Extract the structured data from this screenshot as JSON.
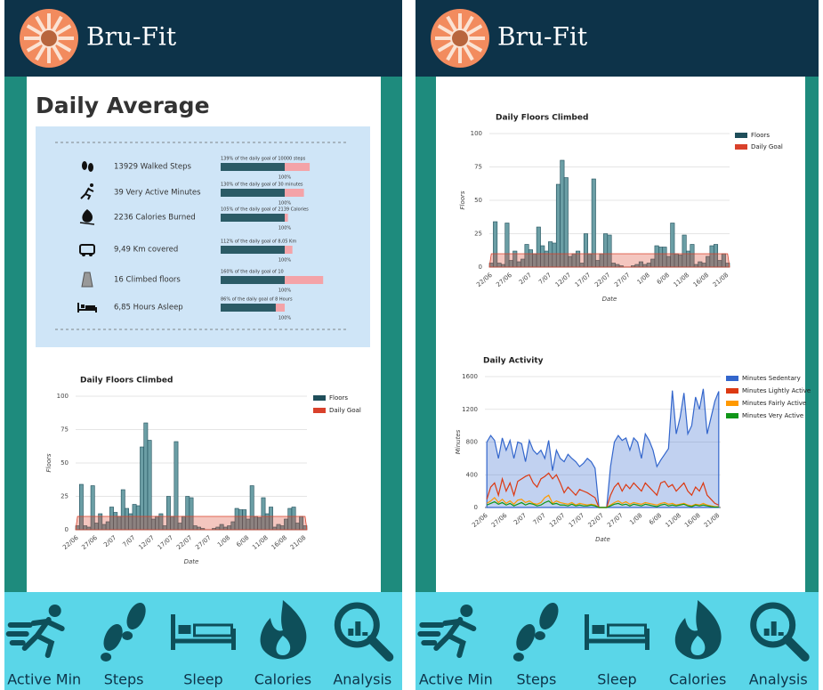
{
  "app_name": "Bru-Fit",
  "nav": [
    "Active Min",
    "Steps",
    "Sleep",
    "Calories",
    "Analysis"
  ],
  "daily_average": {
    "title": "Daily Average",
    "goal_mark_label": "100%",
    "items": [
      {
        "text": "13929 Walked Steps",
        "caption": "139% of the daily goal of 10000 steps",
        "percent": 139
      },
      {
        "text": "39 Very Active Minutes",
        "caption": "130% of the daily goal of 30 minutes",
        "percent": 130
      },
      {
        "text": "2236 Calories Burned",
        "caption": "105% of the daily goal of 2139 Calories",
        "percent": 105
      },
      {
        "text": "9,49 Km covered",
        "caption": "112% of the daily goal of 8,05 Km",
        "percent": 112
      },
      {
        "text": "16 Climbed floors",
        "caption": "160% of the daily goal of 10",
        "percent": 160
      },
      {
        "text": "6,85 Hours Asleep",
        "caption": "86% of the daily goal of 8 Hours",
        "percent": 86
      }
    ]
  },
  "floors_chart": {
    "type": "bar",
    "title": "Daily Floors Climbed",
    "x_label": "Date",
    "y_label": "Floors",
    "categories": [
      "22/06",
      null,
      null,
      null,
      null,
      "27/06",
      null,
      null,
      null,
      null,
      "2/07",
      null,
      null,
      null,
      null,
      "7/07",
      null,
      null,
      null,
      null,
      "12/07",
      null,
      null,
      null,
      null,
      "17/07",
      null,
      null,
      null,
      null,
      "22/07",
      null,
      null,
      null,
      null,
      "27/07",
      null,
      null,
      null,
      null,
      "1/08",
      null,
      null,
      null,
      null,
      "6/08",
      null,
      null,
      null,
      null,
      "11/08",
      null,
      null,
      null,
      null,
      "16/08",
      null,
      null,
      null,
      null,
      "21/08"
    ],
    "series": [
      {
        "name": "Floors",
        "color": "#1f4e5a",
        "values": [
          3,
          34,
          3,
          2,
          33,
          5,
          12,
          4,
          6,
          17,
          13,
          10,
          30,
          16,
          12,
          19,
          18,
          62,
          80,
          67,
          8,
          10,
          12,
          3,
          25,
          10,
          66,
          5,
          10,
          25,
          24,
          3,
          2,
          1,
          0,
          0,
          1,
          2,
          4,
          2,
          3,
          6,
          16,
          15,
          15,
          8,
          33,
          10,
          9,
          24,
          12,
          17,
          2,
          4,
          3,
          8,
          16,
          17,
          5,
          10,
          3
        ]
      },
      {
        "name": "Daily Goal",
        "color": "#d9412b",
        "values": [
          10,
          10,
          10,
          10,
          10,
          10,
          10,
          10,
          10,
          10,
          10,
          10,
          10,
          10,
          10,
          10,
          10,
          10,
          10,
          10,
          10,
          10,
          10,
          10,
          10,
          10,
          10,
          10,
          10,
          10,
          10,
          10,
          10,
          10,
          10,
          10,
          10,
          10,
          10,
          10,
          10,
          10,
          10,
          10,
          10,
          10,
          10,
          10,
          10,
          10,
          10,
          10,
          10,
          10,
          10,
          10,
          10,
          10,
          10,
          10,
          10
        ]
      }
    ],
    "ylim": [
      0,
      100
    ],
    "yticks": [
      0,
      25,
      50,
      75,
      100
    ]
  },
  "activity_chart": {
    "type": "line",
    "title": "Daily Activity",
    "x_label": "Date",
    "y_label": "Minutes",
    "categories": [
      "22/06",
      null,
      null,
      null,
      null,
      "27/06",
      null,
      null,
      null,
      null,
      "2/07",
      null,
      null,
      null,
      null,
      "7/07",
      null,
      null,
      null,
      null,
      "12/07",
      null,
      null,
      null,
      null,
      "17/07",
      null,
      null,
      null,
      null,
      "22/07",
      null,
      null,
      null,
      null,
      "27/07",
      null,
      null,
      null,
      null,
      "1/08",
      null,
      null,
      null,
      null,
      "6/08",
      null,
      null,
      null,
      null,
      "11/08",
      null,
      null,
      null,
      null,
      "16/08",
      null,
      null,
      null,
      null,
      "21/08"
    ],
    "series": [
      {
        "name": "Minutes Sedentary",
        "color": "#3366cc",
        "values": [
          800,
          880,
          820,
          600,
          850,
          700,
          820,
          600,
          800,
          780,
          560,
          820,
          700,
          650,
          700,
          600,
          820,
          450,
          700,
          600,
          560,
          650,
          600,
          560,
          500,
          540,
          600,
          560,
          480,
          0,
          0,
          0,
          500,
          800,
          880,
          820,
          850,
          700,
          850,
          800,
          600,
          900,
          820,
          700,
          500,
          580,
          650,
          720,
          1430,
          900,
          1100,
          1400,
          900,
          1000,
          1350,
          1200,
          1450,
          900,
          1100,
          1300,
          1420
        ]
      },
      {
        "name": "Minutes Lightly Active",
        "color": "#dc3912",
        "values": [
          100,
          250,
          300,
          150,
          350,
          200,
          300,
          150,
          320,
          350,
          380,
          400,
          300,
          250,
          350,
          380,
          420,
          350,
          400,
          300,
          180,
          250,
          200,
          150,
          220,
          200,
          180,
          150,
          120,
          0,
          0,
          0,
          150,
          250,
          300,
          200,
          280,
          230,
          300,
          250,
          200,
          300,
          250,
          200,
          150,
          300,
          320,
          250,
          280,
          200,
          250,
          300,
          200,
          150,
          250,
          200,
          300,
          150,
          100,
          50,
          30
        ]
      },
      {
        "name": "Minutes Fairly Active",
        "color": "#ff9900",
        "values": [
          50,
          80,
          120,
          60,
          100,
          50,
          80,
          40,
          90,
          100,
          60,
          80,
          50,
          40,
          60,
          120,
          150,
          50,
          80,
          60,
          50,
          40,
          60,
          30,
          50,
          40,
          30,
          40,
          30,
          0,
          0,
          0,
          30,
          60,
          80,
          50,
          70,
          40,
          60,
          50,
          40,
          60,
          50,
          40,
          30,
          50,
          60,
          40,
          50,
          30,
          40,
          50,
          30,
          20,
          40,
          30,
          50,
          30,
          20,
          10,
          10
        ]
      },
      {
        "name": "Minutes Very Active",
        "color": "#109618",
        "values": [
          30,
          50,
          70,
          40,
          60,
          30,
          50,
          20,
          40,
          60,
          30,
          50,
          40,
          20,
          30,
          60,
          80,
          40,
          50,
          30,
          30,
          20,
          40,
          20,
          30,
          20,
          20,
          30,
          20,
          0,
          0,
          0,
          20,
          40,
          50,
          30,
          40,
          20,
          40,
          30,
          20,
          40,
          30,
          20,
          10,
          30,
          40,
          20,
          30,
          20,
          30,
          40,
          20,
          10,
          30,
          20,
          30,
          20,
          10,
          5,
          5
        ]
      }
    ],
    "ylim": [
      0,
      1600
    ],
    "yticks": [
      0,
      400,
      800,
      1200,
      1600
    ]
  }
}
